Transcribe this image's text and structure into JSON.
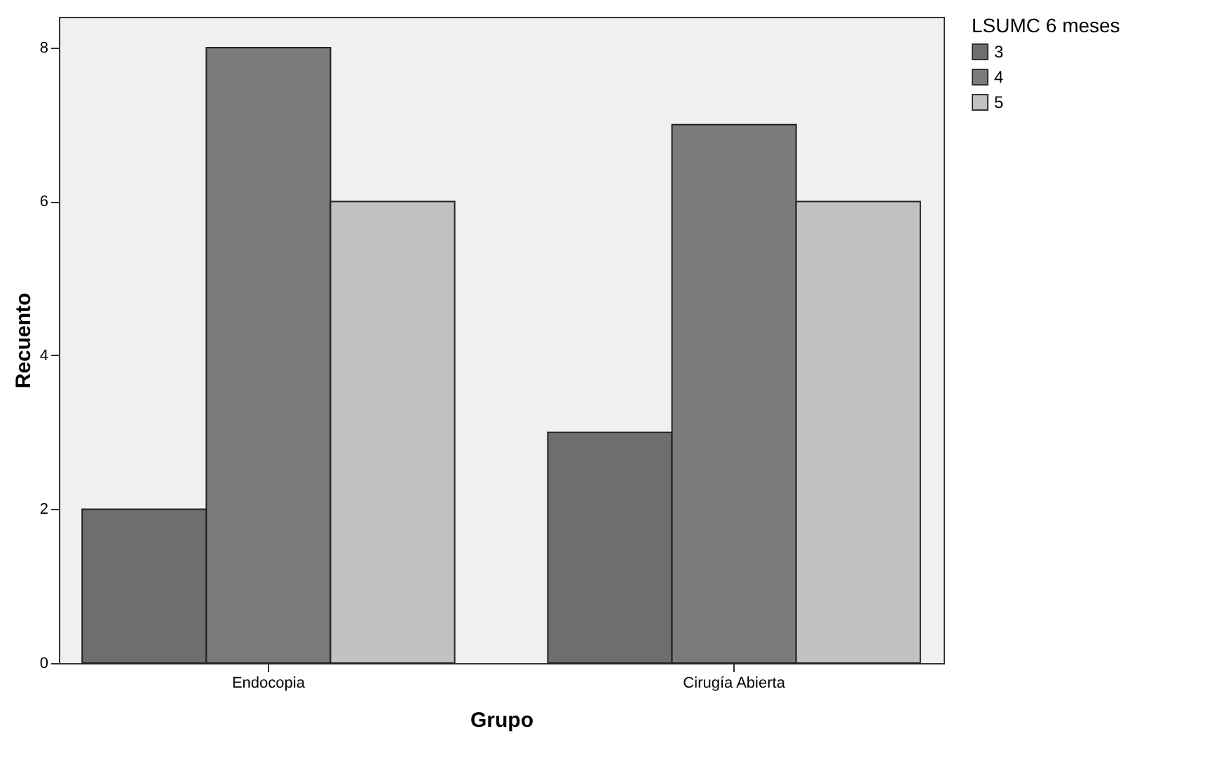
{
  "chart_data": {
    "type": "bar",
    "xlabel": "Grupo",
    "ylabel": "Recuento",
    "legend_title": "LSUMC 6 meses",
    "categories": [
      "Endocopia",
      "Cirugía Abierta"
    ],
    "series": [
      {
        "name": "3",
        "color": "#6e6e6e",
        "values": [
          2,
          3
        ]
      },
      {
        "name": "4",
        "color": "#7b7b7b",
        "values": [
          8,
          7
        ]
      },
      {
        "name": "5",
        "color": "#c2c2c2",
        "values": [
          6,
          6
        ]
      }
    ],
    "ylim": [
      0,
      8.4
    ],
    "yticks": [
      0,
      2,
      4,
      6,
      8
    ],
    "grid": false,
    "legend": "top right"
  }
}
